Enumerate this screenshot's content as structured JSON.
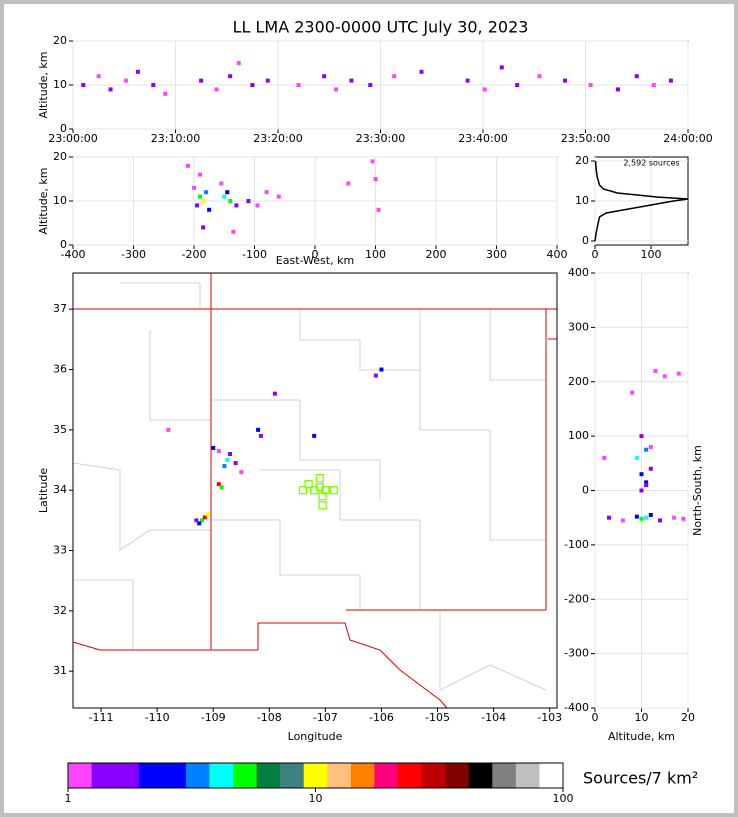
{
  "chart_data": [
    {
      "type": "scatter",
      "title": "LL LMA 2300-0000 UTC July 30, 2023",
      "ylabel": "Altitude, km",
      "xlim": [
        "23:00:00",
        "24:00:00"
      ],
      "xticks": [
        "23:00:00",
        "23:10:00",
        "23:20:00",
        "23:30:00",
        "23:40:00",
        "23:50:00",
        "24:00:00"
      ],
      "ylim": [
        0,
        20
      ],
      "yticks": [
        0,
        10,
        20
      ],
      "grid": true,
      "points": {
        "x": [
          "23:01:00",
          "23:02:30",
          "23:03:40",
          "23:05:10",
          "23:06:20",
          "23:07:50",
          "23:09:00",
          "23:12:30",
          "23:14:00",
          "23:15:20",
          "23:16:10",
          "23:17:30",
          "23:19:00",
          "23:22:00",
          "23:24:30",
          "23:25:40",
          "23:27:10",
          "23:29:00",
          "23:31:20",
          "23:34:00",
          "23:38:30",
          "23:40:10",
          "23:41:50",
          "23:43:20",
          "23:45:30",
          "23:48:00",
          "23:50:30",
          "23:53:10",
          "23:55:00",
          "23:56:40",
          "23:58:20"
        ],
        "y": [
          10,
          12,
          9,
          11,
          13,
          10,
          8,
          11,
          9,
          12,
          15,
          10,
          11,
          10,
          12,
          9,
          11,
          10,
          12,
          13,
          11,
          9,
          14,
          10,
          12,
          11,
          10,
          9,
          12,
          10,
          11
        ],
        "colors": [
          "#8800ff",
          "#ff44ff",
          "#8800ff",
          "#ff44ff",
          "#8800ff",
          "#8800ff",
          "#ff44ff",
          "#8800ff",
          "#ff44ff",
          "#8800ff",
          "#ff44ff",
          "#8800ff",
          "#8800ff",
          "#ff44ff",
          "#8800ff",
          "#ff44ff",
          "#8800ff",
          "#8800ff",
          "#ff44ff",
          "#8800ff",
          "#8800ff",
          "#ff44ff",
          "#8800ff",
          "#8800ff",
          "#ff44ff",
          "#8800ff",
          "#ff44ff",
          "#8800ff",
          "#8800ff",
          "#ff44ff",
          "#8800ff"
        ]
      }
    },
    {
      "type": "scatter",
      "xlabel": "East-West, km",
      "ylabel": "Altitude, km",
      "xlim": [
        -400,
        400
      ],
      "xticks": [
        -400,
        -300,
        -200,
        -100,
        0,
        100,
        200,
        300,
        400
      ],
      "ylim": [
        0,
        20
      ],
      "yticks": [
        0,
        10,
        20
      ],
      "grid": true,
      "points": {
        "x": [
          -190,
          -185,
          -180,
          -195,
          -175,
          -200,
          -190,
          -185,
          -150,
          -140,
          -145,
          -130,
          -155,
          -135,
          -110,
          -95,
          -80,
          -60,
          100,
          105,
          95,
          -210,
          55
        ],
        "y": [
          11,
          10,
          12,
          9,
          8,
          13,
          16,
          4,
          11,
          10,
          12,
          9,
          14,
          3,
          10,
          9,
          12,
          11,
          15,
          8,
          19,
          18,
          14
        ],
        "colors": [
          "#00ff00",
          "#ffff00",
          "#0080ff",
          "#8800ff",
          "#0000ff",
          "#ff44ff",
          "#ff44ff",
          "#8800ff",
          "#00ffff",
          "#00ff00",
          "#0000ff",
          "#8800ff",
          "#ff44ff",
          "#ff44ff",
          "#8800ff",
          "#ff44ff",
          "#ff44ff",
          "#ff44ff",
          "#ff44ff",
          "#ff44ff",
          "#ff44ff",
          "#ff44ff",
          "#ff44ff"
        ]
      }
    },
    {
      "type": "line",
      "annotation": "2,592 sources",
      "xlim": [
        0,
        166
      ],
      "xticks": [
        0,
        100
      ],
      "ylim": [
        -1,
        21
      ],
      "yticks": [
        0,
        10,
        20
      ],
      "grid": true,
      "color": "#000000",
      "x": [
        0,
        2,
        5,
        8,
        20,
        60,
        100,
        140,
        166,
        110,
        40,
        15,
        8,
        4,
        2,
        1
      ],
      "y": [
        0,
        2,
        4,
        6,
        7,
        8,
        9,
        10,
        10.5,
        11,
        12,
        13,
        14,
        16,
        18,
        20
      ]
    },
    {
      "type": "scatter",
      "xlabel": "Longitude",
      "ylabel": "Latitude",
      "xlim": [
        -111.5,
        -102.87
      ],
      "xticks": [
        -111,
        -110,
        -109,
        -108,
        -107,
        -106,
        -105,
        -104,
        -103
      ],
      "ylim": [
        30.39,
        37.6
      ],
      "yticks": [
        31,
        32,
        33,
        34,
        35,
        36,
        37
      ],
      "grid": false,
      "points": {
        "x": [
          -109.2,
          -109.15,
          -109.25,
          -109.1,
          -109.3,
          -108.9,
          -108.85,
          -108.8,
          -108.7,
          -108.75,
          -109.0,
          -108.9,
          -108.6,
          -108.2,
          -108.15,
          -107.9,
          -106.0,
          -106.1,
          -107.2,
          -109.8,
          -108.5
        ],
        "y": [
          33.5,
          33.55,
          33.45,
          33.6,
          33.5,
          34.1,
          34.05,
          34.4,
          34.6,
          34.5,
          34.7,
          34.65,
          34.45,
          35.0,
          34.9,
          35.6,
          36.0,
          35.9,
          34.9,
          35.0,
          34.3
        ],
        "colors": [
          "#00ff00",
          "#ff0000",
          "#0000ff",
          "#ffff00",
          "#8800ff",
          "#ff0000",
          "#00ff00",
          "#0080ff",
          "#8800ff",
          "#00ffff",
          "#0000ff",
          "#ff44ff",
          "#8800ff",
          "#0000ff",
          "#8800ff",
          "#8800ff",
          "#0000ff",
          "#8800ff",
          "#0000ff",
          "#ff44ff",
          "#ff44ff"
        ]
      },
      "stations": {
        "x": [
          -107.3,
          -107.1,
          -107.0,
          -107.2,
          -106.85,
          -107.05,
          -107.05,
          -107.4,
          -107.1
        ],
        "y": [
          34.1,
          34.2,
          34.0,
          34.0,
          34.0,
          33.9,
          33.75,
          34.0,
          34.05
        ],
        "color": "#7fff00"
      }
    },
    {
      "type": "scatter",
      "xlabel": "Altitude, km",
      "ylabel": "North-South, km",
      "xlim": [
        0,
        20
      ],
      "xticks": [
        0,
        10,
        20
      ],
      "ylim": [
        -400,
        400
      ],
      "yticks": [
        -400,
        -300,
        -200,
        -100,
        0,
        100,
        200,
        300,
        400
      ],
      "grid": true,
      "points": {
        "x": [
          3,
          6,
          9,
          10,
          11,
          12,
          14,
          17,
          19,
          10,
          11,
          12,
          9,
          11,
          10,
          12,
          11,
          10,
          13,
          8,
          15,
          18,
          2
        ],
        "y": [
          -50,
          -55,
          -48,
          -52,
          -50,
          -45,
          -55,
          -50,
          -52,
          0,
          15,
          40,
          60,
          75,
          100,
          80,
          10,
          30,
          220,
          180,
          210,
          215,
          60
        ],
        "colors": [
          "#8800ff",
          "#ff44ff",
          "#0000ff",
          "#00ff00",
          "#00ffff",
          "#0000ff",
          "#8800ff",
          "#ff44ff",
          "#ff44ff",
          "#8800ff",
          "#0000ff",
          "#8800ff",
          "#00ffff",
          "#0080ff",
          "#8800ff",
          "#ff44ff",
          "#8800ff",
          "#0000ff",
          "#ff44ff",
          "#ff44ff",
          "#ff44ff",
          "#ff44ff",
          "#ff44ff"
        ]
      }
    },
    {
      "type": "colorbar",
      "label": "Sources/7 km²",
      "log": true,
      "xlim": [
        1,
        100
      ],
      "xticks": [
        1,
        10,
        100
      ],
      "colors": [
        "#ff44ff",
        "#8800ff",
        "#8800ff",
        "#0000ff",
        "#0000ff",
        "#0080ff",
        "#00ffff",
        "#00ff00",
        "#008040",
        "#408080",
        "#ffff00",
        "#ffc080",
        "#ff8000",
        "#ff0080",
        "#ff0000",
        "#c00000",
        "#800000",
        "#000000",
        "#808080",
        "#c0c0c0",
        "#ffffff"
      ]
    }
  ]
}
